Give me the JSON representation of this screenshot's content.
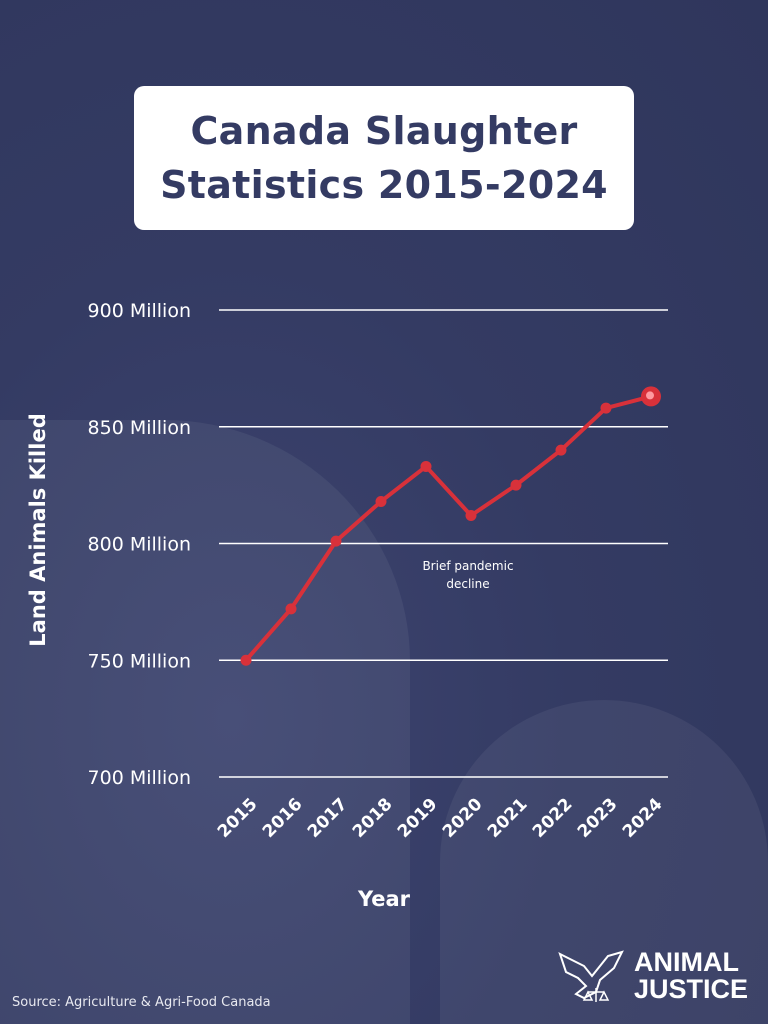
{
  "title": {
    "line1": "Canada Slaughter",
    "line2": "Statistics 2015-2024"
  },
  "chart_data": {
    "type": "line",
    "title": "Canada Slaughter Statistics 2015-2024",
    "xlabel": "Year",
    "ylabel": "Land Animals Killed",
    "categories": [
      "2015",
      "2016",
      "2017",
      "2018",
      "2019",
      "2020",
      "2021",
      "2022",
      "2023",
      "2024"
    ],
    "values": [
      750,
      772,
      801,
      818,
      833,
      812,
      825,
      840,
      858,
      863
    ],
    "value_unit": "million",
    "yticks": [
      700,
      750,
      800,
      850,
      900
    ],
    "ytick_labels": [
      "700 Million",
      "750 Million",
      "800 Million",
      "850 Million",
      "900 Million"
    ],
    "ylim": [
      700,
      900
    ],
    "grid": "horizontal",
    "annotation": {
      "text_line1": "Brief pandemic",
      "text_line2": "decline",
      "year": "2020"
    },
    "line_color": "#d8313a"
  },
  "source": "Source: Agriculture & Agri-Food Canada",
  "logo": {
    "line1": "ANIMAL",
    "line2": "JUSTICE",
    "icon": "dove-scales-icon"
  },
  "colors": {
    "background": "#343b63",
    "title_text": "#343b63",
    "line": "#d8313a"
  }
}
